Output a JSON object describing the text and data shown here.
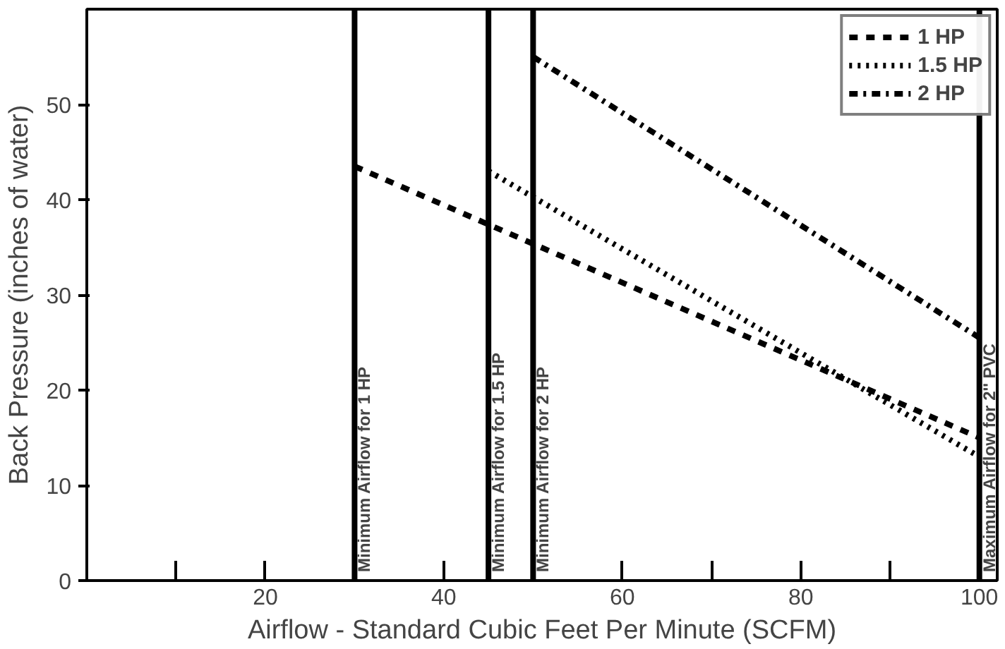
{
  "chart_data": {
    "type": "line",
    "xlabel": "Airflow - Standard Cubic Feet Per Minute (SCFM)",
    "ylabel": "Back Pressure (inches of water)",
    "xlim": [
      0,
      102
    ],
    "ylim": [
      0,
      60
    ],
    "xticks": [
      {
        "value": 10,
        "label": null
      },
      20,
      {
        "value": 30,
        "label": null
      },
      40,
      {
        "value": 50,
        "label": null
      },
      60,
      {
        "value": 70,
        "label": null
      },
      80,
      {
        "value": 90,
        "label": null
      },
      100
    ],
    "yticks": [
      0,
      10,
      20,
      30,
      40,
      50
    ],
    "series": [
      {
        "name": "1 HP",
        "color": "#000000",
        "line_style": "dashed",
        "x": [
          30,
          100
        ],
        "values": [
          43.5,
          15
        ]
      },
      {
        "name": "1.5 HP",
        "color": "#000000",
        "line_style": "dotted",
        "x": [
          45,
          100
        ],
        "values": [
          43,
          13
        ]
      },
      {
        "name": "2 HP",
        "color": "#000000",
        "line_style": "dashdot",
        "x": [
          50,
          100
        ],
        "values": [
          55,
          25.5
        ]
      }
    ],
    "ref_lines": [
      {
        "axis": "x",
        "value": 30,
        "label": "Minimum Airflow for 1 HP"
      },
      {
        "axis": "x",
        "value": 45,
        "label": "Minimum Airflow for 1.5 HP"
      },
      {
        "axis": "x",
        "value": 50,
        "label": "Minimum Airflow for 2 HP"
      },
      {
        "axis": "x",
        "value": 100,
        "label": "Maximum Airflow for 2'' PVC"
      }
    ],
    "grid": false,
    "legend": "top right",
    "marker": "none"
  }
}
